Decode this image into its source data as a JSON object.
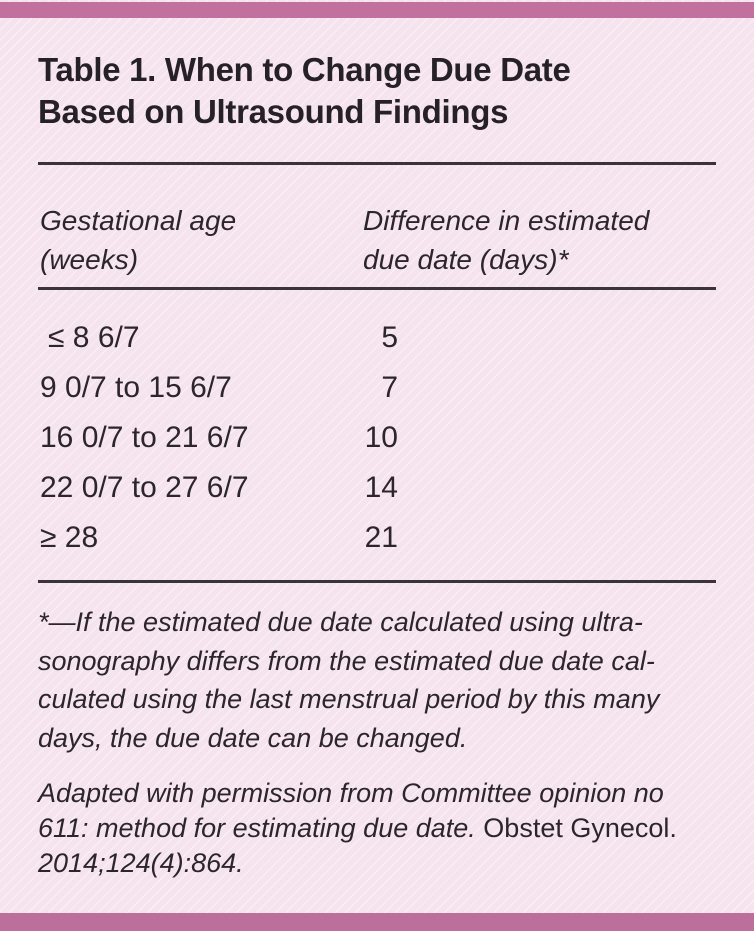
{
  "colors": {
    "accent_bar": "#c2709e",
    "background": "#f5e4ee",
    "text": "#2c262b",
    "rule": "#3a3338"
  },
  "title": {
    "line1": "Table 1. When to Change Due Date",
    "line2": "Based on Ultrasound Findings"
  },
  "table": {
    "col1_header": {
      "line1": "Gestational age",
      "line2": "(weeks)"
    },
    "col2_header": {
      "line1": "Difference in estimated",
      "line2": "due date (days)*"
    },
    "rows": [
      {
        "age": "≤ 8 6/7",
        "days": "5"
      },
      {
        "age": "9 0/7 to 15 6/7",
        "days": "7"
      },
      {
        "age": "16 0/7 to 21 6/7",
        "days": "10"
      },
      {
        "age": "22 0/7 to 27 6/7",
        "days": "14"
      },
      {
        "age": "≥ 28",
        "days": "21"
      }
    ]
  },
  "footnote": {
    "lines": [
      "*—If the estimated due date calculated using ultra-",
      "sonography differs from the estimated due date cal-",
      "culated using the last menstrual period by this many",
      "days, the due date can be changed."
    ]
  },
  "attribution": {
    "line1_italic": "Adapted with permission from Committee opinion no",
    "line2_italic": "611: method for estimating due date.",
    "line2_roman": "Obstet Gynecol.",
    "line3_italic": "2014;124(4):864."
  }
}
